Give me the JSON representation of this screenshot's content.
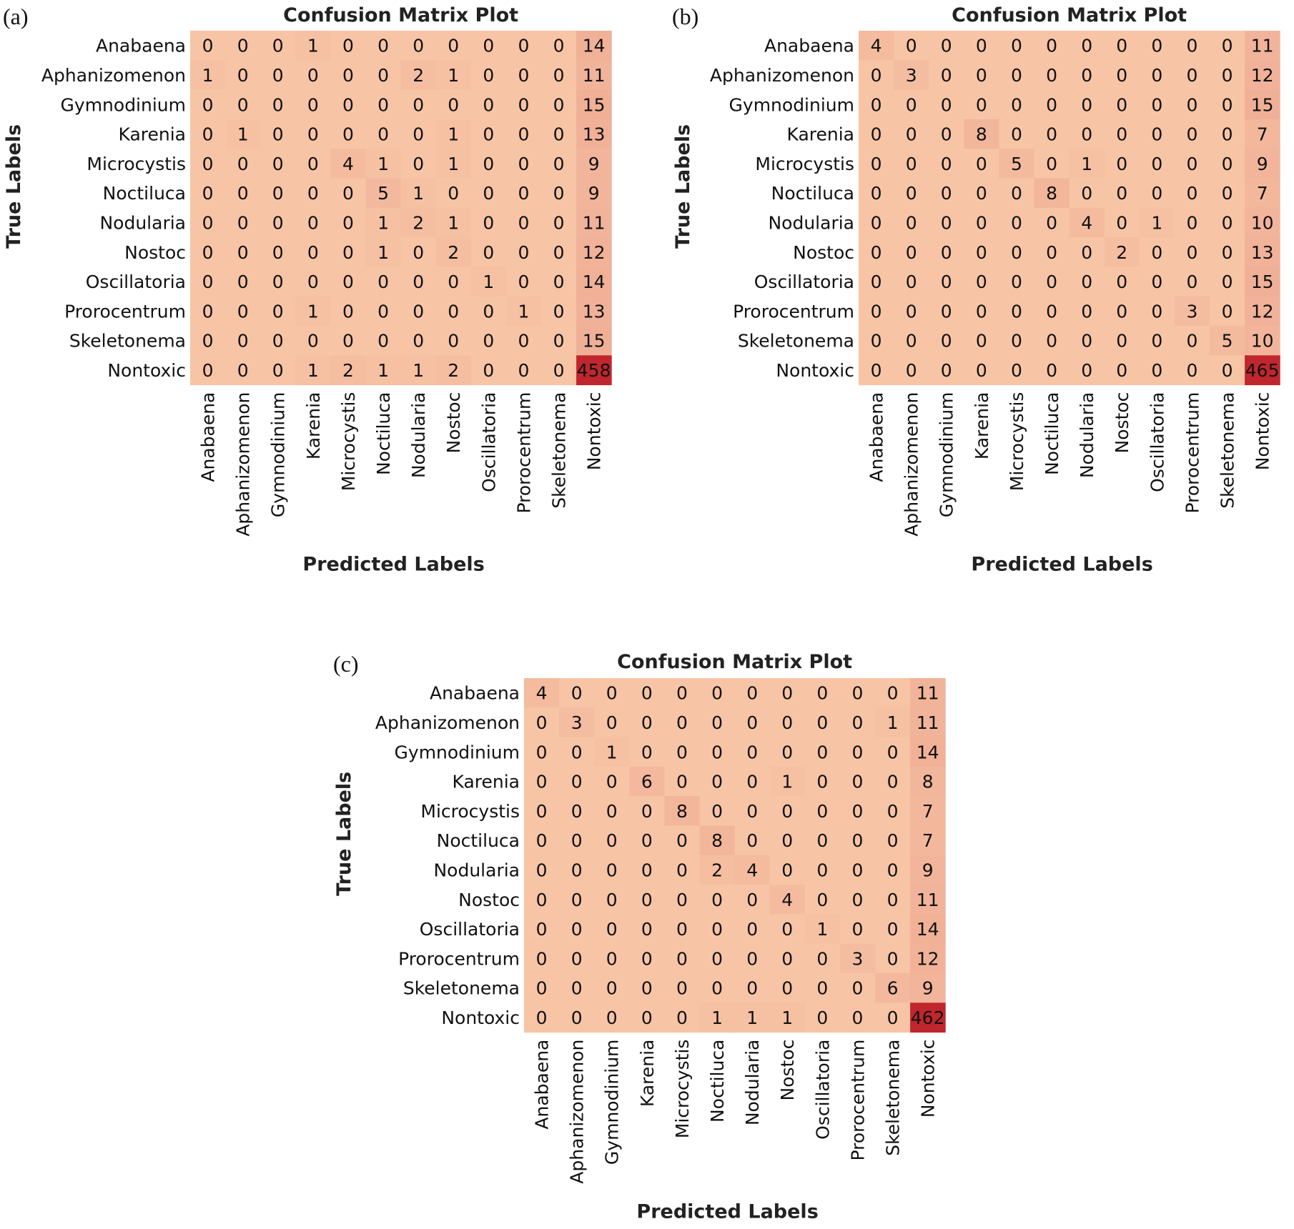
{
  "chart_data": [
    {
      "type": "heatmap",
      "panel": "(a)",
      "title": "Confusion Matrix Plot",
      "xlabel": "Predicted Labels",
      "ylabel": "True Labels",
      "categories": [
        "Anabaena",
        "Aphanizomenon",
        "Gymnodinium",
        "Karenia",
        "Microcystis",
        "Noctiluca",
        "Nodularia",
        "Nostoc",
        "Oscillatoria",
        "Prorocentrum",
        "Skeletonema",
        "Nontoxic"
      ],
      "matrix": [
        [
          0,
          0,
          0,
          1,
          0,
          0,
          0,
          0,
          0,
          0,
          0,
          14
        ],
        [
          1,
          0,
          0,
          0,
          0,
          0,
          2,
          1,
          0,
          0,
          0,
          11
        ],
        [
          0,
          0,
          0,
          0,
          0,
          0,
          0,
          0,
          0,
          0,
          0,
          15
        ],
        [
          0,
          1,
          0,
          0,
          0,
          0,
          0,
          1,
          0,
          0,
          0,
          13
        ],
        [
          0,
          0,
          0,
          0,
          4,
          1,
          0,
          1,
          0,
          0,
          0,
          9
        ],
        [
          0,
          0,
          0,
          0,
          0,
          5,
          1,
          0,
          0,
          0,
          0,
          9
        ],
        [
          0,
          0,
          0,
          0,
          0,
          1,
          2,
          1,
          0,
          0,
          0,
          11
        ],
        [
          0,
          0,
          0,
          0,
          0,
          1,
          0,
          2,
          0,
          0,
          0,
          12
        ],
        [
          0,
          0,
          0,
          0,
          0,
          0,
          0,
          0,
          1,
          0,
          0,
          14
        ],
        [
          0,
          0,
          0,
          1,
          0,
          0,
          0,
          0,
          0,
          1,
          0,
          13
        ],
        [
          0,
          0,
          0,
          0,
          0,
          0,
          0,
          0,
          0,
          0,
          0,
          15
        ],
        [
          0,
          0,
          0,
          1,
          2,
          1,
          1,
          2,
          0,
          0,
          0,
          458
        ]
      ],
      "colors": {
        "low": "#f7c4a6",
        "high": "#c0262d"
      }
    },
    {
      "type": "heatmap",
      "panel": "(b)",
      "title": "Confusion Matrix Plot",
      "xlabel": "Predicted Labels",
      "ylabel": "True Labels",
      "categories": [
        "Anabaena",
        "Aphanizomenon",
        "Gymnodinium",
        "Karenia",
        "Microcystis",
        "Noctiluca",
        "Nodularia",
        "Nostoc",
        "Oscillatoria",
        "Prorocentrum",
        "Skeletonema",
        "Nontoxic"
      ],
      "matrix": [
        [
          4,
          0,
          0,
          0,
          0,
          0,
          0,
          0,
          0,
          0,
          0,
          11
        ],
        [
          0,
          3,
          0,
          0,
          0,
          0,
          0,
          0,
          0,
          0,
          0,
          12
        ],
        [
          0,
          0,
          0,
          0,
          0,
          0,
          0,
          0,
          0,
          0,
          0,
          15
        ],
        [
          0,
          0,
          0,
          8,
          0,
          0,
          0,
          0,
          0,
          0,
          0,
          7
        ],
        [
          0,
          0,
          0,
          0,
          5,
          0,
          1,
          0,
          0,
          0,
          0,
          9
        ],
        [
          0,
          0,
          0,
          0,
          0,
          8,
          0,
          0,
          0,
          0,
          0,
          7
        ],
        [
          0,
          0,
          0,
          0,
          0,
          0,
          4,
          0,
          1,
          0,
          0,
          10
        ],
        [
          0,
          0,
          0,
          0,
          0,
          0,
          0,
          2,
          0,
          0,
          0,
          13
        ],
        [
          0,
          0,
          0,
          0,
          0,
          0,
          0,
          0,
          0,
          0,
          0,
          15
        ],
        [
          0,
          0,
          0,
          0,
          0,
          0,
          0,
          0,
          0,
          3,
          0,
          12
        ],
        [
          0,
          0,
          0,
          0,
          0,
          0,
          0,
          0,
          0,
          0,
          5,
          10
        ],
        [
          0,
          0,
          0,
          0,
          0,
          0,
          0,
          0,
          0,
          0,
          0,
          465
        ]
      ],
      "colors": {
        "low": "#f7c4a6",
        "high": "#c0262d"
      }
    },
    {
      "type": "heatmap",
      "panel": "(c)",
      "title": "Confusion Matrix Plot",
      "xlabel": "Predicted Labels",
      "ylabel": "True Labels",
      "categories": [
        "Anabaena",
        "Aphanizomenon",
        "Gymnodinium",
        "Karenia",
        "Microcystis",
        "Noctiluca",
        "Nodularia",
        "Nostoc",
        "Oscillatoria",
        "Prorocentrum",
        "Skeletonema",
        "Nontoxic"
      ],
      "matrix": [
        [
          4,
          0,
          0,
          0,
          0,
          0,
          0,
          0,
          0,
          0,
          0,
          11
        ],
        [
          0,
          3,
          0,
          0,
          0,
          0,
          0,
          0,
          0,
          0,
          1,
          11
        ],
        [
          0,
          0,
          1,
          0,
          0,
          0,
          0,
          0,
          0,
          0,
          0,
          14
        ],
        [
          0,
          0,
          0,
          6,
          0,
          0,
          0,
          1,
          0,
          0,
          0,
          8
        ],
        [
          0,
          0,
          0,
          0,
          8,
          0,
          0,
          0,
          0,
          0,
          0,
          7
        ],
        [
          0,
          0,
          0,
          0,
          0,
          8,
          0,
          0,
          0,
          0,
          0,
          7
        ],
        [
          0,
          0,
          0,
          0,
          0,
          2,
          4,
          0,
          0,
          0,
          0,
          9
        ],
        [
          0,
          0,
          0,
          0,
          0,
          0,
          0,
          4,
          0,
          0,
          0,
          11
        ],
        [
          0,
          0,
          0,
          0,
          0,
          0,
          0,
          0,
          1,
          0,
          0,
          14
        ],
        [
          0,
          0,
          0,
          0,
          0,
          0,
          0,
          0,
          0,
          3,
          0,
          12
        ],
        [
          0,
          0,
          0,
          0,
          0,
          0,
          0,
          0,
          0,
          0,
          6,
          9
        ],
        [
          0,
          0,
          0,
          0,
          0,
          1,
          1,
          1,
          0,
          0,
          0,
          462
        ]
      ],
      "colors": {
        "low": "#f7c4a6",
        "high": "#c0262d"
      }
    }
  ]
}
